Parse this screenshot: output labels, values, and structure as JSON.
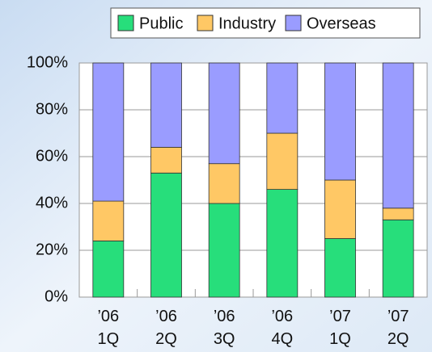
{
  "chart_data": {
    "type": "stacked_bar",
    "categories": [
      [
        "’06",
        "1Q"
      ],
      [
        "’06",
        "2Q"
      ],
      [
        "’06",
        "3Q"
      ],
      [
        "’06",
        "4Q"
      ],
      [
        "’07",
        "1Q"
      ],
      [
        "’07",
        "2Q"
      ]
    ],
    "series": [
      {
        "name": "Public",
        "color": "#27de7b",
        "values": [
          24,
          53,
          40,
          46,
          25,
          33
        ]
      },
      {
        "name": "Industry",
        "color": "#ffc865",
        "values": [
          17,
          11,
          17,
          24,
          25,
          5
        ]
      },
      {
        "name": "Overseas",
        "color": "#9a9cff",
        "values": [
          59,
          36,
          43,
          30,
          50,
          62
        ]
      }
    ],
    "ylim": [
      0,
      100
    ],
    "yticks": [
      {
        "value": 0,
        "label": "0%"
      },
      {
        "value": 20,
        "label": "20%"
      },
      {
        "value": 40,
        "label": "40%"
      },
      {
        "value": 60,
        "label": "60%"
      },
      {
        "value": 80,
        "label": "80%"
      },
      {
        "value": 100,
        "label": "100%"
      }
    ],
    "grid": true
  }
}
